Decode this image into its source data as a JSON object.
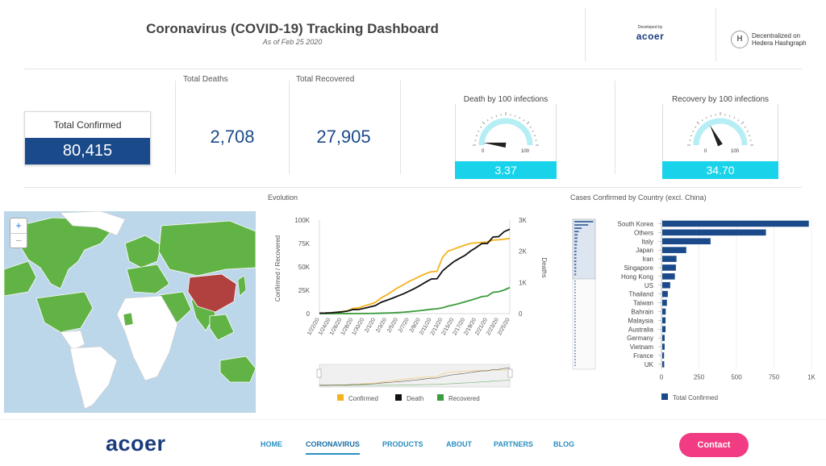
{
  "header": {
    "title": "Coronavirus (COVID-19) Tracking Dashboard",
    "subtitle": "As of Feb 25 2020",
    "developed_by": "Developed by",
    "developer": "acoer",
    "partner_line1": "Decentralized on",
    "partner_line2": "Hedera Hashgraph"
  },
  "kpis": {
    "total_confirmed_label": "Total Confirmed",
    "total_confirmed": "80,415",
    "total_deaths_label": "Total Deaths",
    "total_deaths": "2,708",
    "total_recovered_label": "Total Recovered",
    "total_recovered": "27,905"
  },
  "gauges": [
    {
      "title": "Death by 100 infections",
      "value": "3.37",
      "min": "0",
      "max": "100",
      "level": 3.37
    },
    {
      "title": "Recovery by 100 infections",
      "value": "34.70",
      "min": "0",
      "max": "100",
      "level": 34.7
    }
  ],
  "map": {
    "zoom_in": "+",
    "zoom_out": "−",
    "colors": {
      "water": "#bcd6ea",
      "affected": "#62b346",
      "china": "#b0413e",
      "unaffected": "#ffffff"
    }
  },
  "evolution": {
    "title": "Evolution",
    "y_left_label": "Confirmed / Recovered",
    "y_right_label": "Deaths",
    "legend": [
      {
        "name": "Confirmed",
        "color": "#f5b21d"
      },
      {
        "name": "Death",
        "color": "#111111"
      },
      {
        "name": "Recovered",
        "color": "#3c9b3c"
      }
    ]
  },
  "country_chart": {
    "title": "Cases Confirmed by Country (excl. China)",
    "legend_label": "Total Confirmed"
  },
  "nav": {
    "logo": "acoer",
    "items": [
      "HOME",
      "CORONAVIRUS",
      "PRODUCTS",
      "ABOUT",
      "PARTNERS",
      "BLOG"
    ],
    "active": "CORONAVIRUS",
    "contact": "Contact"
  },
  "chart_data": [
    {
      "type": "line",
      "x": [
        "1/22/20",
        "1/23/20",
        "1/24/20",
        "1/25/20",
        "1/26/20",
        "1/27/20",
        "1/28/20",
        "1/29/20",
        "1/30/20",
        "1/31/20",
        "2/1/20",
        "2/2/20",
        "2/3/20",
        "2/4/20",
        "2/5/20",
        "2/6/20",
        "2/7/20",
        "2/8/20",
        "2/9/20",
        "2/10/20",
        "2/11/20",
        "2/12/20",
        "2/13/20",
        "2/14/20",
        "2/15/20",
        "2/16/20",
        "2/17/20",
        "2/18/20",
        "2/19/20",
        "2/20/20",
        "2/21/20",
        "2/22/20",
        "2/23/20",
        "2/24/20",
        "2/25/20"
      ],
      "x_tick_labels": [
        "1/22/20",
        "1/24/20",
        "1/26/20",
        "1/28/20",
        "1/30/20",
        "2/1/20",
        "2/3/20",
        "2/5/20",
        "2/7/20",
        "2/9/20",
        "2/11/20",
        "2/13/20",
        "2/15/20",
        "2/17/20",
        "2/19/20",
        "2/21/20",
        "2/23/20",
        "2/25/20"
      ],
      "series": [
        {
          "name": "Confirmed",
          "axis": "left",
          "values": [
            555,
            650,
            940,
            1430,
            2120,
            2930,
            5580,
            6170,
            8240,
            9930,
            12040,
            16790,
            19880,
            23890,
            27640,
            30800,
            34390,
            37120,
            40150,
            42760,
            44800,
            45220,
            60370,
            66890,
            69030,
            71230,
            73260,
            75140,
            75640,
            76200,
            76840,
            78600,
            78980,
            79570,
            80415
          ]
        },
        {
          "name": "Recovered",
          "axis": "left",
          "values": [
            28,
            30,
            36,
            39,
            52,
            61,
            107,
            126,
            143,
            222,
            284,
            472,
            623,
            852,
            1124,
            1487,
            2011,
            2616,
            3244,
            3946,
            4683,
            5150,
            6295,
            8058,
            9395,
            10865,
            12583,
            14352,
            16121,
            18177,
            18890,
            22886,
            23394,
            25227,
            27905
          ]
        },
        {
          "name": "Death",
          "axis": "right",
          "values": [
            17,
            18,
            26,
            42,
            56,
            82,
            131,
            133,
            171,
            213,
            259,
            362,
            426,
            492,
            564,
            634,
            719,
            806,
            906,
            1013,
            1113,
            1118,
            1371,
            1523,
            1666,
            1770,
            1868,
            2007,
            2122,
            2247,
            2251,
            2458,
            2469,
            2629,
            2708
          ]
        }
      ],
      "y_left_ticks": [
        "0",
        "25K",
        "50K",
        "75K",
        "100K"
      ],
      "y_right_ticks": [
        "0",
        "1K",
        "2K",
        "3K"
      ],
      "ylim_left": [
        0,
        100000
      ],
      "ylim_right": [
        0,
        3000
      ],
      "ylabel_left": "Confirmed / Recovered",
      "ylabel_right": "Deaths",
      "legend": "bottom",
      "grid": false
    },
    {
      "type": "bar",
      "orientation": "horizontal",
      "categories": [
        "South Korea",
        "Others",
        "Italy",
        "Japan",
        "Iran",
        "Singapore",
        "Hong Kong",
        "US",
        "Thailand",
        "Taiwan",
        "Bahrain",
        "Malaysia",
        "Australia",
        "Germany",
        "Vietnam",
        "France",
        "UK"
      ],
      "values": [
        977,
        691,
        322,
        160,
        95,
        91,
        84,
        53,
        37,
        31,
        23,
        22,
        22,
        16,
        16,
        12,
        13
      ],
      "x_ticks": [
        "0",
        "250",
        "500",
        "750",
        "1K"
      ],
      "xlim": [
        0,
        1000
      ],
      "series_name": "Total Confirmed",
      "color": "#1b4a8a",
      "legend": "bottom",
      "grid": true
    }
  ]
}
